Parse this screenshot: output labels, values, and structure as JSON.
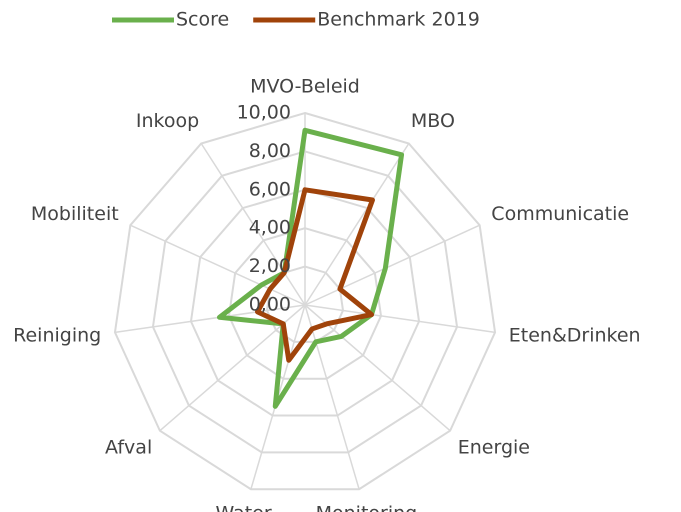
{
  "chart_data": {
    "type": "radar",
    "categories": [
      "MVO-Beleid",
      "MBO",
      "Communicatie",
      "Eten&Drinken",
      "Energie",
      "Monitoring",
      "Water",
      "Afval",
      "Reiniging",
      "Mobiliteit",
      "Inkoop"
    ],
    "series": [
      {
        "name": "Score",
        "color": "#6ab04c",
        "values": [
          9.1,
          9.3,
          4.6,
          3.5,
          2.5,
          2.0,
          5.5,
          1.5,
          4.5,
          2.5,
          2.0
        ]
      },
      {
        "name": "Benchmark 2019",
        "color": "#a0430a",
        "values": [
          6.0,
          6.5,
          2.0,
          3.5,
          1.5,
          1.3,
          3.0,
          1.5,
          2.5,
          2.0,
          2.0
        ]
      }
    ],
    "ylim": [
      0,
      10
    ],
    "yticks": [
      {
        "value": 0,
        "label": "0,00"
      },
      {
        "value": 2,
        "label": "2,00"
      },
      {
        "value": 4,
        "label": "4,00"
      },
      {
        "value": 6,
        "label": "6,00"
      },
      {
        "value": 8,
        "label": "8,00"
      },
      {
        "value": 10,
        "label": "10,00"
      }
    ],
    "grid": true,
    "legend": "top"
  }
}
